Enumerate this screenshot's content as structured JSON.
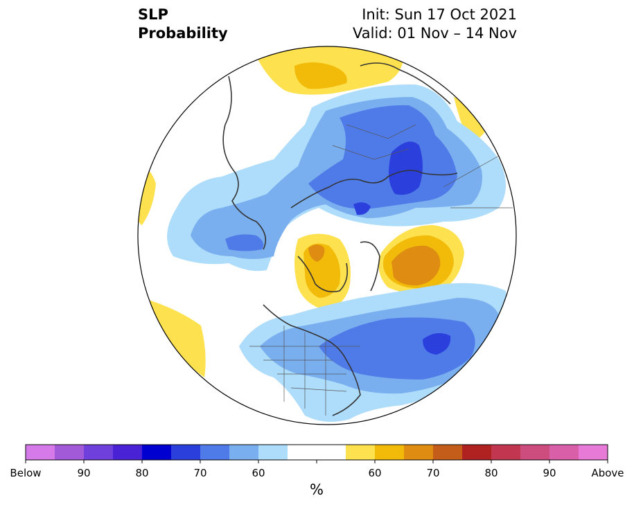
{
  "title": {
    "left_line1": "SLP",
    "left_line2": "Probability",
    "right_line1": "Init: Sun 17 Oct 2021",
    "right_line2": "Valid: 01 Nov – 14 Nov"
  },
  "colorbar": {
    "unit": "%",
    "colors": [
      "#d57ae8",
      "#a25ad9",
      "#7040dd",
      "#4a22d6",
      "#0000d0",
      "#2a3fdc",
      "#4f7be8",
      "#7aafef",
      "#aedcfb",
      "#ffffff",
      "#ffffff",
      "#fee14e",
      "#f2bb0a",
      "#de8d12",
      "#c45c1a",
      "#b02222",
      "#c23650",
      "#cc4d7e",
      "#d960a8",
      "#e87ad7"
    ],
    "tick_labels": [
      "Below",
      "90",
      "80",
      "70",
      "60",
      "60",
      "70",
      "80",
      "90",
      "Above"
    ]
  },
  "palette": {
    "below_light": "#aedcfb",
    "below_60": "#7aafef",
    "below_70": "#4f7be8",
    "below_80": "#2a3fdc",
    "above_light": "#fee14e",
    "above_60": "#f2bb0a",
    "above_70": "#de8d12",
    "coast": "#333333"
  }
}
